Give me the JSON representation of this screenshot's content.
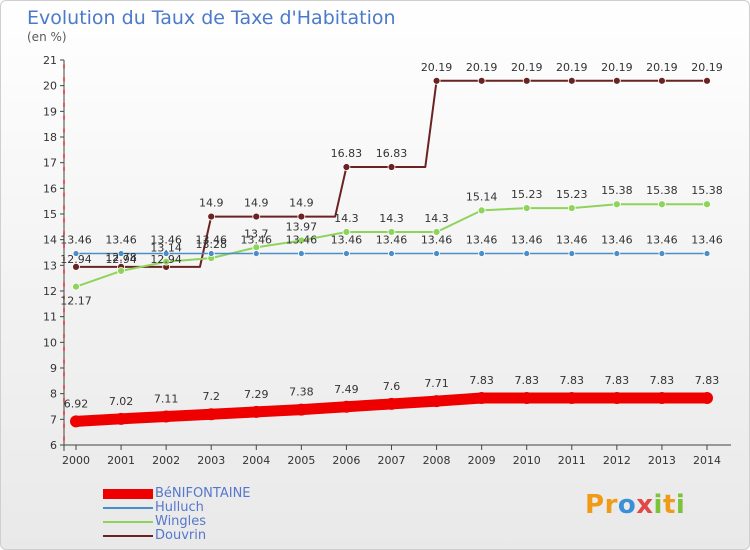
{
  "title": "Evolution du Taux de Taxe d'Habitation",
  "subtitle": "(en %)",
  "logo_text": "Proxiti",
  "chart_data": {
    "type": "line",
    "x": [
      "2000",
      "2001",
      "2002",
      "2003",
      "2004",
      "2005",
      "2006",
      "2007",
      "2008",
      "2009",
      "2010",
      "2011",
      "2012",
      "2013",
      "2014"
    ],
    "ylim": [
      6,
      21
    ],
    "yticks": [
      6,
      7,
      8,
      9,
      10,
      11,
      12,
      13,
      14,
      15,
      16,
      17,
      18,
      19,
      20,
      21
    ],
    "grid": false,
    "legend_position": "bottom-left",
    "series": [
      {
        "name": "BéNIFONTAINE",
        "color": "#ee0000",
        "values": [
          6.92,
          7.02,
          7.11,
          7.2,
          7.29,
          7.38,
          7.49,
          7.6,
          7.71,
          7.83,
          7.83,
          7.83,
          7.83,
          7.83,
          7.83
        ],
        "labels": [
          "6.92",
          "7.02",
          "7.11",
          "7.2",
          "7.29",
          "7.38",
          "7.49",
          "7.6",
          "7.71",
          "7.83",
          "7.83",
          "7.83",
          "7.83",
          "7.83",
          "7.83"
        ]
      },
      {
        "name": "Hulluch",
        "color": "#4a8ec8",
        "values": [
          13.46,
          13.46,
          13.46,
          13.46,
          13.46,
          13.46,
          13.46,
          13.46,
          13.46,
          13.46,
          13.46,
          13.46,
          13.46,
          13.46,
          13.46
        ],
        "labels": [
          "13.46",
          "13.46",
          "13.46",
          "13.46",
          "13.46",
          "13.46",
          "13.46",
          "13.46",
          "13.46",
          "13.46",
          "13.46",
          "13.46",
          "13.46",
          "13.46",
          "13.46"
        ]
      },
      {
        "name": "Wingles",
        "color": "#8fd45a",
        "values": [
          12.17,
          12.78,
          13.14,
          13.28,
          13.7,
          13.97,
          14.3,
          14.3,
          14.3,
          15.14,
          15.23,
          15.23,
          15.38,
          15.38,
          15.38
        ],
        "labels": [
          "12.17",
          "12.78",
          "13.14",
          "13.28",
          "13.7",
          "13.97",
          "14.3",
          "14.3",
          "14.3",
          "15.14",
          "15.23",
          "15.23",
          "15.38",
          "15.38",
          "15.38"
        ]
      },
      {
        "name": "Douvrin",
        "color": "#6b2222",
        "values": [
          12.94,
          12.94,
          12.94,
          14.9,
          14.9,
          14.9,
          16.83,
          16.83,
          20.19,
          20.19,
          20.19,
          20.19,
          20.19,
          20.19,
          20.19
        ],
        "labels": [
          "12.94",
          "12.94",
          "12.94",
          "14.9",
          "14.9",
          "14.9",
          "16.83",
          "16.83",
          "20.19",
          "20.19",
          "20.19",
          "20.19",
          "20.19",
          "20.19",
          "20.19"
        ]
      }
    ]
  }
}
